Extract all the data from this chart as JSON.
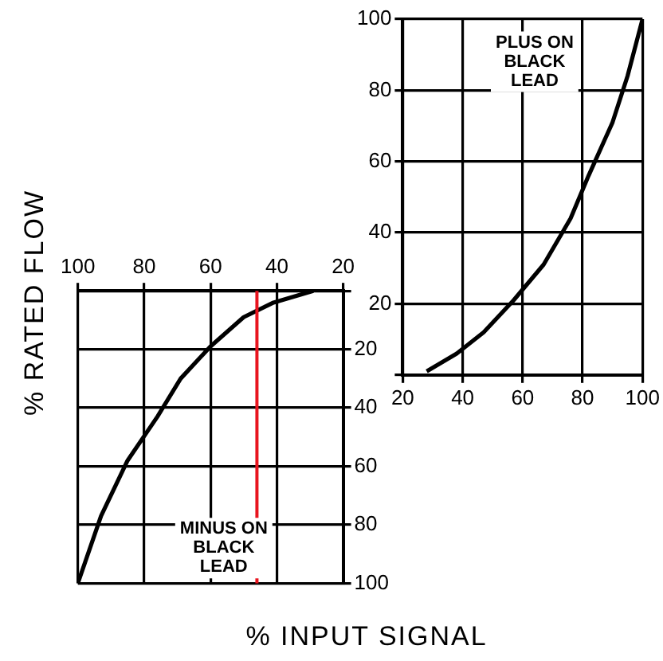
{
  "chart_data": [
    {
      "type": "line",
      "xlim": [
        20,
        100
      ],
      "ylim": [
        0,
        100
      ],
      "xticks": [
        20,
        40,
        60,
        80,
        100
      ],
      "yticks": [
        {
          "value": 0,
          "label": null
        },
        20,
        40,
        60,
        80,
        100
      ],
      "grid": true,
      "legend": false,
      "marker": "none",
      "series": [
        {
          "name": "PLUS ON BLACK LEAD",
          "color": "#000000",
          "x": [
            28,
            38,
            47,
            57,
            67,
            76,
            82,
            90,
            95,
            100
          ],
          "values": [
            1,
            6,
            12,
            21,
            31,
            44,
            56,
            71,
            84,
            100
          ]
        }
      ]
    },
    {
      "type": "line",
      "xlabel": "% INPUT SIGNAL",
      "ylabel": "% RATED FLOW",
      "xlim": [
        100,
        20
      ],
      "ylim": [
        100,
        0
      ],
      "xticks": [
        100,
        80,
        60,
        40,
        20
      ],
      "yticks": [
        {
          "value": 0,
          "label": null
        },
        20,
        40,
        60,
        80,
        100
      ],
      "grid": true,
      "legend": false,
      "marker": "none",
      "series": [
        {
          "name": "MINUS ON BLACK LEAD",
          "color": "#000000",
          "x": [
            100,
            93,
            85,
            76,
            69,
            60,
            50,
            41,
            29
          ],
          "values": [
            100,
            77,
            58,
            43,
            30,
            19,
            9,
            4,
            0
          ]
        }
      ],
      "ref_lines": [
        {
          "axis": "x",
          "value": 46,
          "color": "#e8141e"
        }
      ]
    }
  ]
}
